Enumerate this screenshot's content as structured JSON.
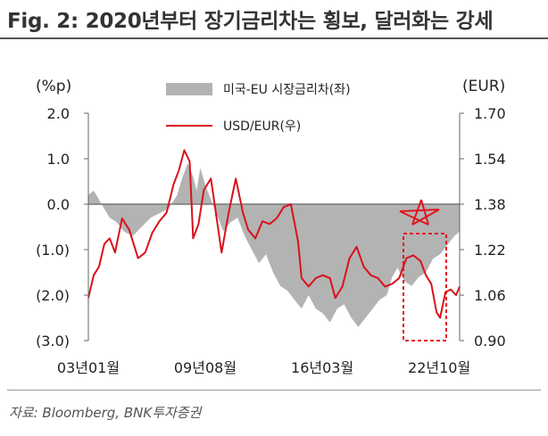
{
  "title": "Fig. 2: 2020년부터 장기금리차는 횡보, 달러화는 강세",
  "source": "자료: Bloomberg, BNK투자증권",
  "colors": {
    "spread": "#b3b3b3",
    "usdeur": "#d9111b",
    "axis": "#666666",
    "zero_line": "#777777",
    "highlight": "#e0161e"
  },
  "chart_data": {
    "type": "area+line",
    "left_axis": {
      "unit": "(%p)",
      "ylim": [
        -3.0,
        2.0
      ],
      "ticks": [
        2.0,
        1.0,
        0.0,
        -1.0,
        -2.0,
        -3.0
      ],
      "tick_labels": [
        "2.0",
        "1.0",
        "0.0",
        "(1.0)",
        "(2.0)",
        "(3.0)"
      ]
    },
    "right_axis": {
      "unit": "(EUR)",
      "ylim": [
        0.9,
        1.7
      ],
      "ticks": [
        1.7,
        1.54,
        1.38,
        1.22,
        1.06,
        0.9
      ],
      "tick_labels": [
        "1.70",
        "1.54",
        "1.38",
        "1.22",
        "1.06",
        "0.90"
      ]
    },
    "x_axis": {
      "range": [
        2003.0,
        2023.9
      ],
      "tick_positions": [
        2003.0,
        2009.58,
        2016.17,
        2022.75
      ],
      "tick_labels": [
        "03년01월",
        "09년08월",
        "16년03월",
        "22년10월"
      ]
    },
    "legend": [
      "미국-EU 시장금리차(좌)",
      "USD/EUR(우)"
    ],
    "series": [
      {
        "name": "미국-EU 시장금리차(좌)",
        "axis": "left",
        "kind": "area",
        "x": [
          2003.0,
          2003.3,
          2003.6,
          2003.9,
          2004.2,
          2004.6,
          2005.0,
          2005.5,
          2006.0,
          2006.5,
          2007.0,
          2007.5,
          2008.0,
          2008.3,
          2008.6,
          2008.9,
          2009.1,
          2009.3,
          2009.6,
          2009.9,
          2010.2,
          2010.6,
          2011.0,
          2011.4,
          2011.8,
          2012.2,
          2012.6,
          2013.0,
          2013.4,
          2013.8,
          2014.2,
          2014.6,
          2015.0,
          2015.4,
          2015.8,
          2016.2,
          2016.6,
          2017.0,
          2017.4,
          2017.8,
          2018.2,
          2018.6,
          2019.0,
          2019.4,
          2019.8,
          2020.1,
          2020.4,
          2020.8,
          2021.2,
          2021.6,
          2022.0,
          2022.4,
          2022.8,
          2023.2,
          2023.6,
          2023.9
        ],
        "values": [
          0.2,
          0.3,
          0.1,
          -0.1,
          -0.3,
          -0.4,
          -0.6,
          -0.7,
          -0.5,
          -0.3,
          -0.2,
          -0.1,
          0.2,
          0.6,
          0.9,
          0.6,
          0.3,
          0.8,
          0.4,
          0.1,
          -0.2,
          -0.6,
          -0.4,
          -0.3,
          -0.7,
          -1.0,
          -1.3,
          -1.1,
          -1.5,
          -1.8,
          -1.9,
          -2.1,
          -2.3,
          -2.0,
          -2.3,
          -2.4,
          -2.6,
          -2.3,
          -2.2,
          -2.5,
          -2.7,
          -2.5,
          -2.3,
          -2.1,
          -2.0,
          -1.6,
          -1.4,
          -1.7,
          -1.8,
          -1.6,
          -1.5,
          -1.2,
          -1.1,
          -0.9,
          -0.7,
          -0.6
        ]
      },
      {
        "name": "USD/EUR(우)",
        "axis": "right",
        "kind": "line",
        "x": [
          2003.0,
          2003.3,
          2003.6,
          2003.9,
          2004.2,
          2004.5,
          2004.9,
          2005.3,
          2005.8,
          2006.2,
          2006.6,
          2007.0,
          2007.4,
          2007.8,
          2008.1,
          2008.4,
          2008.7,
          2008.9,
          2009.2,
          2009.5,
          2009.9,
          2010.2,
          2010.5,
          2010.9,
          2011.3,
          2011.7,
          2012.0,
          2012.4,
          2012.8,
          2013.2,
          2013.6,
          2014.0,
          2014.4,
          2014.8,
          2015.0,
          2015.4,
          2015.8,
          2016.2,
          2016.6,
          2016.9,
          2017.3,
          2017.7,
          2018.1,
          2018.5,
          2018.9,
          2019.3,
          2019.7,
          2020.1,
          2020.5,
          2020.9,
          2021.3,
          2021.7,
          2022.0,
          2022.3,
          2022.6,
          2022.8,
          2023.1,
          2023.4,
          2023.7,
          2023.9
        ],
        "values": [
          1.05,
          1.13,
          1.16,
          1.24,
          1.26,
          1.21,
          1.33,
          1.29,
          1.19,
          1.21,
          1.28,
          1.32,
          1.35,
          1.45,
          1.5,
          1.57,
          1.53,
          1.26,
          1.31,
          1.43,
          1.47,
          1.34,
          1.21,
          1.35,
          1.47,
          1.35,
          1.29,
          1.26,
          1.32,
          1.31,
          1.33,
          1.37,
          1.38,
          1.25,
          1.12,
          1.09,
          1.12,
          1.13,
          1.12,
          1.05,
          1.09,
          1.19,
          1.23,
          1.16,
          1.13,
          1.12,
          1.09,
          1.1,
          1.12,
          1.19,
          1.2,
          1.18,
          1.13,
          1.1,
          1.0,
          0.98,
          1.07,
          1.08,
          1.06,
          1.09
        ]
      }
    ],
    "annotation": "dashed box highlighting the most recent period"
  }
}
